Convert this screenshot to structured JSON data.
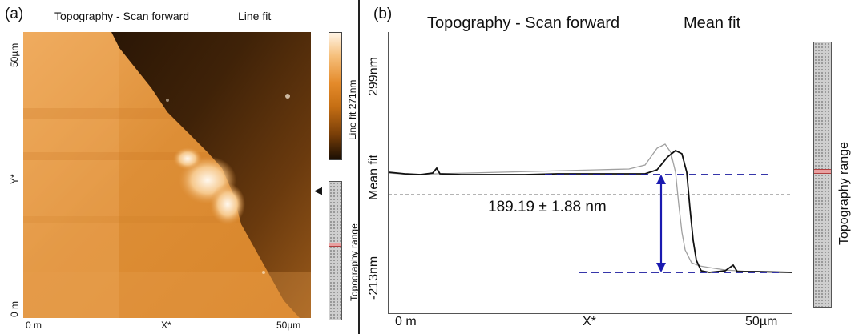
{
  "panel_a": {
    "label": "(a)",
    "title_left": "Topography - Scan forward",
    "title_right": "Line fit",
    "y_top_tick": "50µm",
    "y_axis_label": "Y*",
    "y_bottom_tick": "0 m",
    "x_left_tick": "0 m",
    "x_axis_label": "X*",
    "x_right_tick": "50µm",
    "colorbar_label": "Line fit 271nm",
    "range_label": "Topography range",
    "arrow_glyph": "◀",
    "colors": {
      "dark": "#1a0e03",
      "mid": "#c66f14",
      "light": "#fff4e6"
    }
  },
  "panel_b": {
    "label": "(b)",
    "title_left": "Topography - Scan forward",
    "title_right": "Mean fit",
    "y_axis_label": "Mean fit",
    "y_top_tick": "299nm",
    "y_bottom_tick": "-213nm",
    "x_left_tick": "0 m",
    "x_axis_label": "X*",
    "x_right_tick": "50µm",
    "step_annotation": "189.19 ± 1.88 nm",
    "range_label": "Topography range",
    "colors": {
      "dashed": "#1a1a9e",
      "arrow": "#1a1ab0",
      "profile": "#111111",
      "reference": "#9a9a9a"
    }
  }
}
